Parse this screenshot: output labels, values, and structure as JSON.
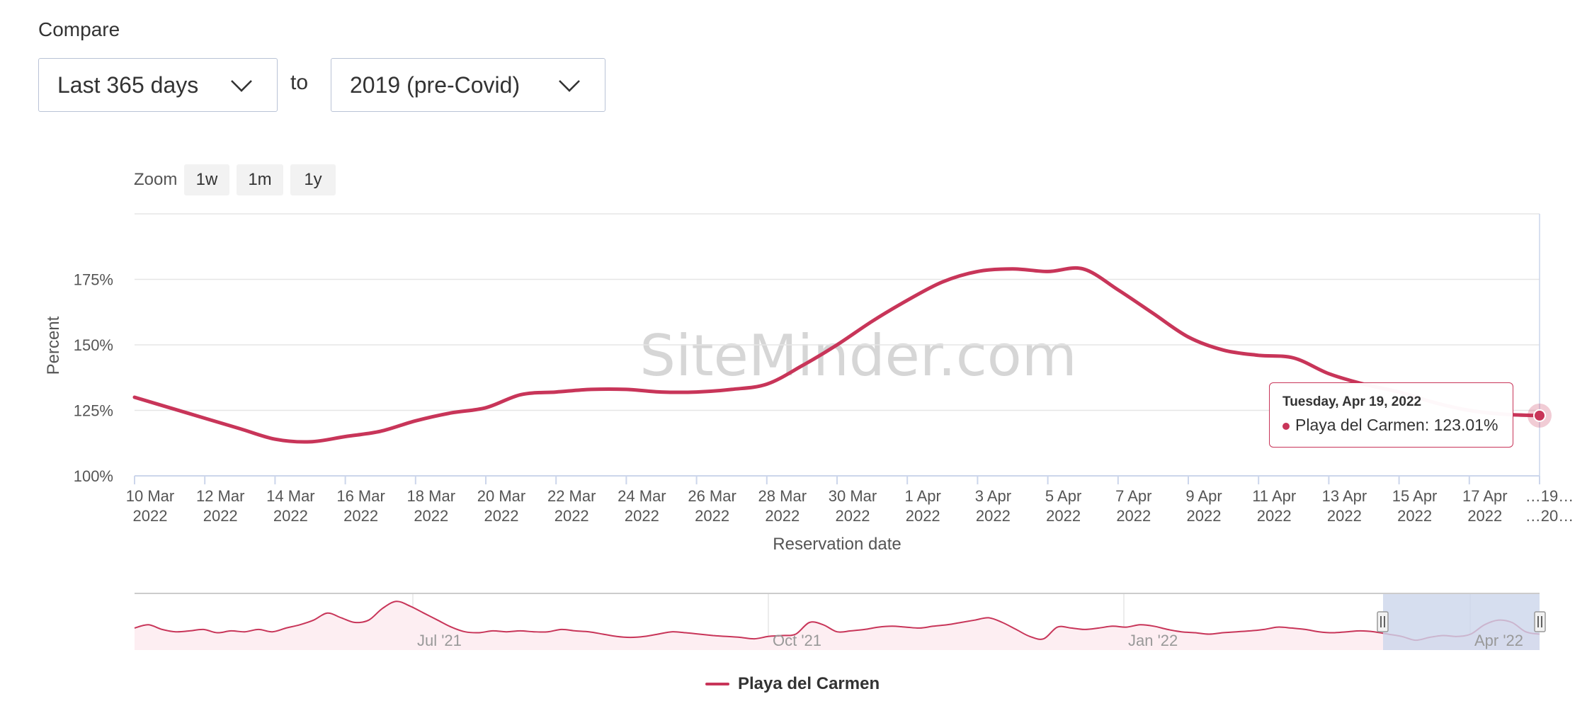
{
  "compare": {
    "label": "Compare",
    "range_value": "Last 365 days",
    "to_label": "to",
    "baseline_value": "2019 (pre-Covid)"
  },
  "zoom": {
    "label": "Zoom",
    "buttons": [
      "1w",
      "1m",
      "1y"
    ]
  },
  "watermark": "SiteMinder.com",
  "tooltip": {
    "date": "Tuesday, Apr 19, 2022",
    "series": "Playa del Carmen",
    "value": "123.01%"
  },
  "colors": {
    "series": "#c83559",
    "navigator_fill": "#fdeef2",
    "navigator_mask": "#ccd6eb",
    "grid": "#e6e6e6"
  },
  "chart_data": {
    "type": "line",
    "xlabel": "Reservation date",
    "ylabel": "Percent",
    "y_ticks": [
      "100%",
      "125%",
      "150%",
      "175%"
    ],
    "ylim": [
      100,
      200
    ],
    "x_range": [
      "2022-03-10",
      "2022-04-19"
    ],
    "x_ticks": [
      [
        "10 Mar",
        "2022"
      ],
      [
        "12 Mar",
        "2022"
      ],
      [
        "14 Mar",
        "2022"
      ],
      [
        "16 Mar",
        "2022"
      ],
      [
        "18 Mar",
        "2022"
      ],
      [
        "20 Mar",
        "2022"
      ],
      [
        "22 Mar",
        "2022"
      ],
      [
        "24 Mar",
        "2022"
      ],
      [
        "26 Mar",
        "2022"
      ],
      [
        "28 Mar",
        "2022"
      ],
      [
        "30 Mar",
        "2022"
      ],
      [
        "1 Apr",
        "2022"
      ],
      [
        "3 Apr",
        "2022"
      ],
      [
        "5 Apr",
        "2022"
      ],
      [
        "7 Apr",
        "2022"
      ],
      [
        "9 Apr",
        "2022"
      ],
      [
        "11 Apr",
        "2022"
      ],
      [
        "13 Apr",
        "2022"
      ],
      [
        "15 Apr",
        "2022"
      ],
      [
        "17 Apr",
        "2022"
      ],
      [
        "…19…",
        "…20…"
      ]
    ],
    "series": [
      {
        "name": "Playa del Carmen",
        "x": [
          "2022-03-10",
          "2022-03-11",
          "2022-03-12",
          "2022-03-13",
          "2022-03-14",
          "2022-03-15",
          "2022-03-16",
          "2022-03-17",
          "2022-03-18",
          "2022-03-19",
          "2022-03-20",
          "2022-03-21",
          "2022-03-22",
          "2022-03-23",
          "2022-03-24",
          "2022-03-25",
          "2022-03-26",
          "2022-03-27",
          "2022-03-28",
          "2022-03-29",
          "2022-03-30",
          "2022-03-31",
          "2022-04-01",
          "2022-04-02",
          "2022-04-03",
          "2022-04-04",
          "2022-04-05",
          "2022-04-06",
          "2022-04-07",
          "2022-04-08",
          "2022-04-09",
          "2022-04-10",
          "2022-04-11",
          "2022-04-12",
          "2022-04-13",
          "2022-04-14",
          "2022-04-15",
          "2022-04-16",
          "2022-04-17",
          "2022-04-18",
          "2022-04-19"
        ],
        "values": [
          130,
          126,
          122,
          118,
          114,
          113,
          115,
          117,
          121,
          124,
          126,
          131,
          132,
          133,
          133,
          132,
          132,
          133,
          135,
          142,
          150,
          159,
          167,
          174,
          178,
          179,
          178,
          179,
          171,
          162,
          153,
          148,
          146,
          145,
          139,
          135,
          132,
          128,
          125,
          123.5,
          123.01
        ]
      }
    ],
    "navigator": {
      "x_labels": [
        "Jul '21",
        "Oct '21",
        "Jan '22",
        "Apr '22"
      ],
      "selected_range": [
        "2022-03-10",
        "2022-04-19"
      ]
    },
    "legend": [
      "Playa del Carmen"
    ]
  }
}
